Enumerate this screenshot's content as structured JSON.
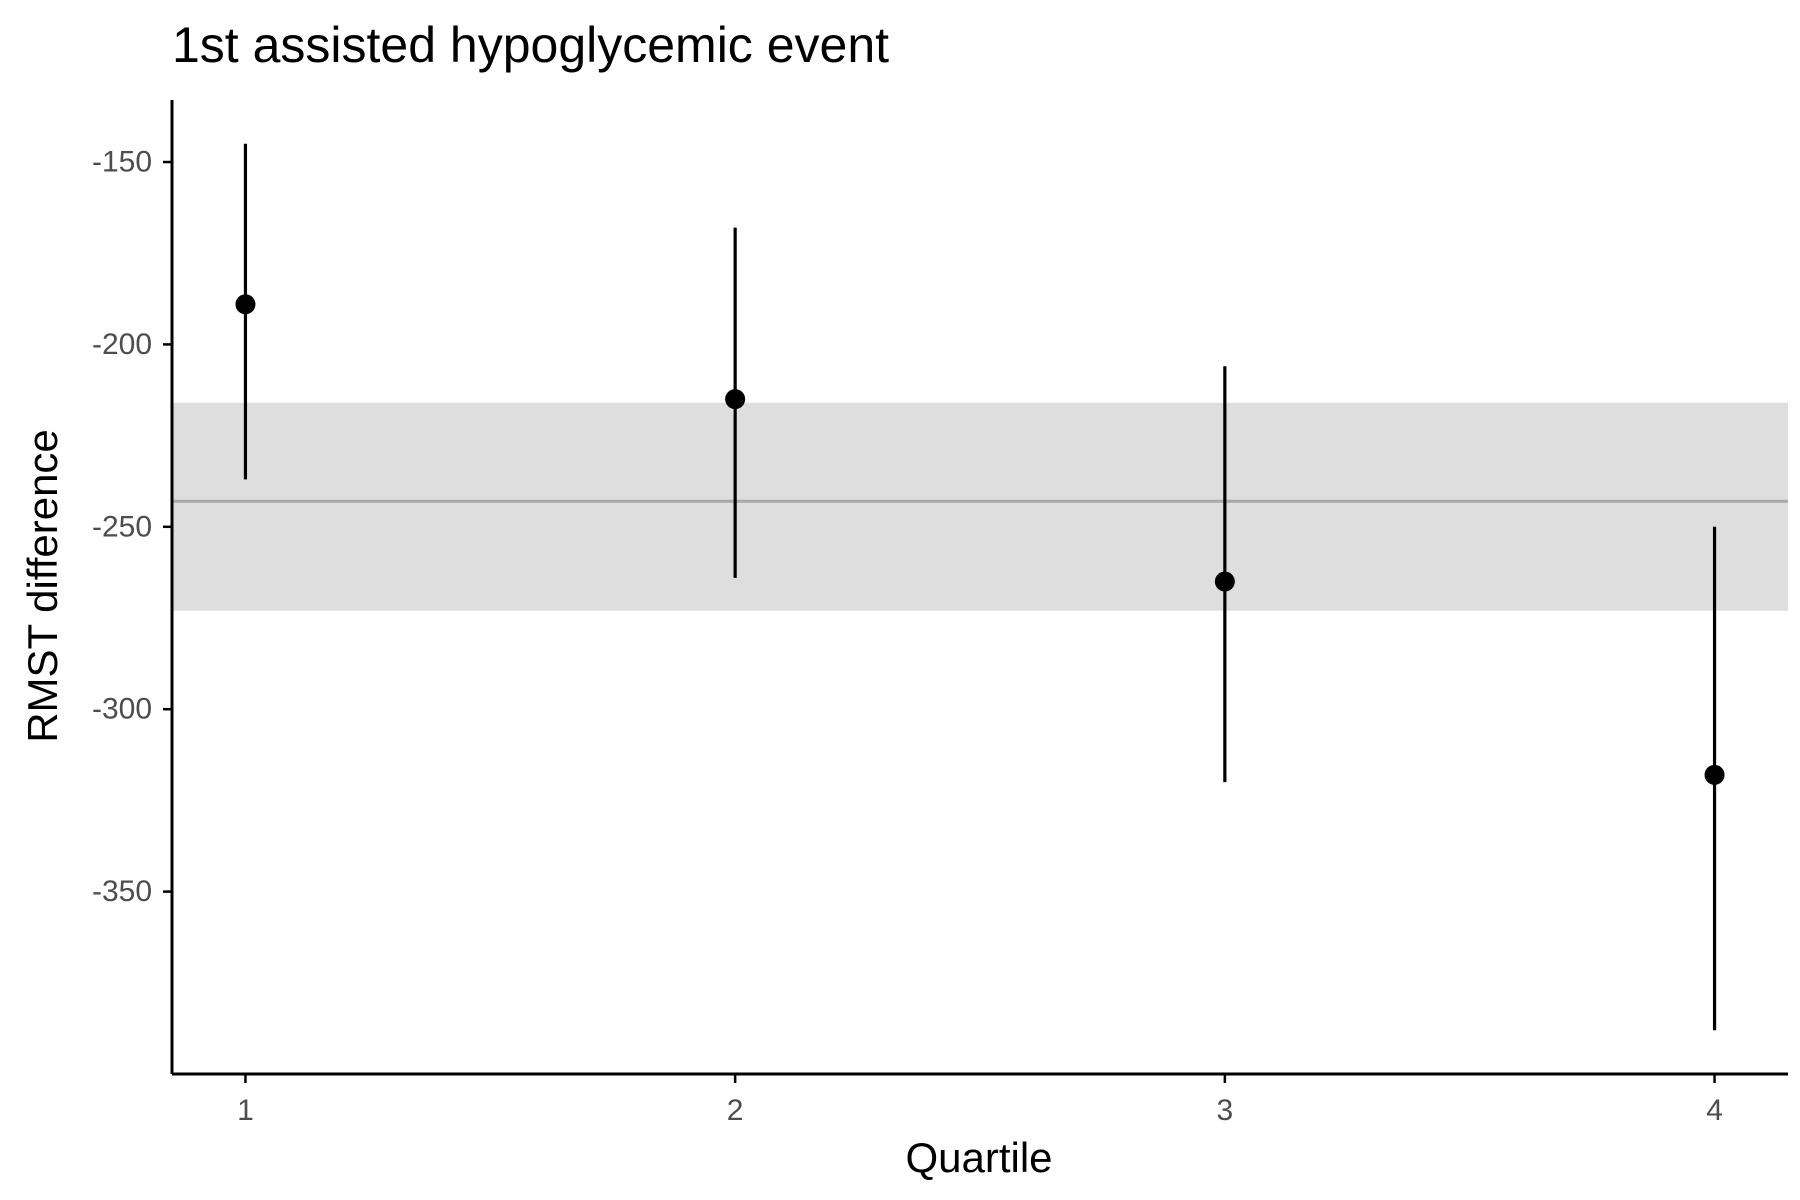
{
  "chart_data": {
    "type": "scatter",
    "title": "1st assisted hypoglycemic event",
    "xlabel": "Quartile",
    "ylabel": "RMST difference",
    "categories": [
      "1",
      "2",
      "3",
      "4"
    ],
    "x": [
      1,
      2,
      3,
      4
    ],
    "y": [
      -189,
      -215,
      -265,
      -318
    ],
    "lower": [
      -237,
      -264,
      -320,
      -388
    ],
    "upper": [
      -145,
      -168,
      -206,
      -250
    ],
    "reference": {
      "value": -243,
      "lower": -273,
      "upper": -216
    },
    "xlim": [
      0.85,
      4.15
    ],
    "ylim": [
      -400,
      -133
    ],
    "yticks": [
      -150,
      -200,
      -250,
      -300,
      -350
    ],
    "ytick_labels": [
      "-150",
      "-200",
      "-250",
      "-300",
      "-350"
    ],
    "xticks": [
      1,
      2,
      3,
      4
    ],
    "xtick_labels": [
      "1",
      "2",
      "3",
      "4"
    ],
    "grid": false,
    "legend": "none",
    "colors": {
      "point": "#000000",
      "band": "#dedede",
      "reference_line": "#a9a9a9",
      "axis": "#000000",
      "tick_label": "#4d4d4d"
    }
  }
}
